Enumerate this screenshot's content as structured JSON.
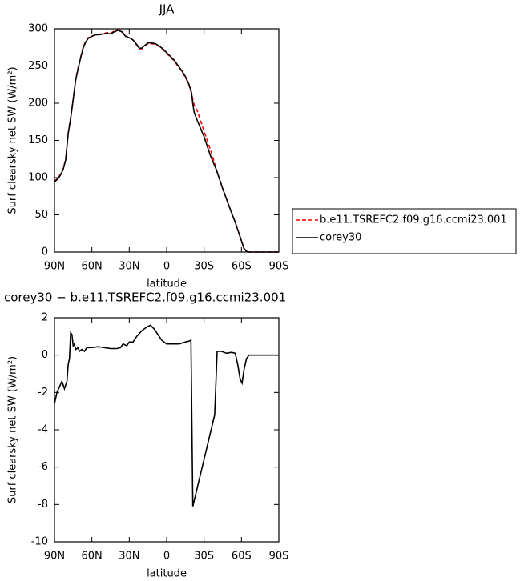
{
  "chart_data": [
    {
      "type": "line",
      "title": "JJA",
      "xlabel": "latitude",
      "ylabel": "Surf clearsky net SW (W/m²)",
      "x": [
        90,
        87,
        85,
        83,
        81,
        79,
        77,
        75,
        73,
        71,
        69,
        67,
        65,
        63,
        60,
        57,
        54,
        51,
        48,
        45,
        42,
        39,
        36,
        33,
        30,
        27,
        24,
        22,
        20,
        18,
        15,
        12,
        9,
        6,
        3,
        0,
        -3,
        -6,
        -9,
        -12,
        -15,
        -18,
        -20,
        -21,
        -22,
        -25,
        -30,
        -35,
        -38,
        -40,
        -45,
        -50,
        -55,
        -58,
        -60,
        -62,
        -64,
        -66,
        -90
      ],
      "series": [
        {
          "name": "b.e11.TSREFC2.f09.g16.ccmi23.001",
          "color": "#ff0000",
          "dashed": true,
          "values": [
            95,
            100,
            105,
            112,
            125,
            160,
            180,
            205,
            232,
            248,
            262,
            275,
            283,
            288,
            290,
            292,
            293,
            293,
            295,
            294,
            297,
            299,
            297,
            290,
            288,
            285,
            278,
            273,
            273,
            276,
            280,
            280,
            279,
            276,
            272,
            267,
            262,
            257,
            250,
            243,
            235,
            224,
            213,
            205,
            198,
            188,
            162,
            138,
            122,
            110,
            85,
            62,
            40,
            25,
            15,
            5,
            1,
            0,
            0
          ]
        },
        {
          "name": "corey30",
          "color": "#000000",
          "dashed": false,
          "values": [
            94,
            99,
            104,
            111,
            124,
            159,
            180,
            205,
            231,
            247,
            261,
            274,
            282,
            287,
            290,
            292,
            292,
            293,
            294,
            293,
            296,
            298,
            296,
            290,
            288,
            285,
            279,
            274,
            274,
            277,
            281,
            281,
            280,
            277,
            273,
            268,
            263,
            258,
            251,
            244,
            236,
            225,
            214,
            199,
            188,
            175,
            155,
            130,
            118,
            110,
            85,
            62,
            40,
            25,
            15,
            5,
            1,
            0,
            0
          ]
        }
      ],
      "xlim": [
        90,
        -90
      ],
      "xticks": [
        {
          "value": 90,
          "label": "90N"
        },
        {
          "value": 60,
          "label": "60N"
        },
        {
          "value": 30,
          "label": "30N"
        },
        0,
        {
          "value": -30,
          "label": "30S"
        },
        {
          "value": -60,
          "label": "60S"
        },
        {
          "value": -90,
          "label": "90S"
        }
      ],
      "ylim": [
        0,
        300
      ],
      "yticks": [
        0,
        50,
        100,
        150,
        200,
        250,
        300
      ],
      "legend": "right"
    },
    {
      "type": "line",
      "title": "corey30 − b.e11.TSREFC2.f09.g16.ccmi23.001",
      "xlabel": "latitude",
      "ylabel": "Surf clearsky net SW (W/m²)",
      "x": [
        90,
        88,
        86,
        84,
        82,
        80,
        79,
        78,
        77,
        76,
        75,
        74,
        73,
        71,
        70,
        68,
        66,
        64,
        60,
        55,
        50,
        45,
        40,
        37,
        35,
        32,
        30,
        27,
        24,
        20,
        16,
        13,
        10,
        7,
        4,
        0,
        -5,
        -10,
        -15,
        -18,
        -19.5,
        -21,
        -38.5,
        -40.5,
        -44,
        -48,
        -52,
        -55,
        -57,
        -59,
        -60.5,
        -62,
        -64,
        -66,
        -90
      ],
      "series": [
        {
          "color": "#000000",
          "dashed": false,
          "values": [
            -2.6,
            -2.0,
            -1.7,
            -1.4,
            -1.8,
            -1.4,
            -0.5,
            -0.2,
            1.2,
            1.1,
            0.5,
            0.6,
            0.3,
            0.4,
            0.2,
            0.3,
            0.2,
            0.4,
            0.4,
            0.45,
            0.4,
            0.35,
            0.35,
            0.4,
            0.6,
            0.5,
            0.7,
            0.7,
            1.0,
            1.3,
            1.5,
            1.6,
            1.4,
            1.1,
            0.8,
            0.6,
            0.6,
            0.6,
            0.7,
            0.75,
            0.8,
            -8.1,
            -3.2,
            0.2,
            0.2,
            0.1,
            0.15,
            0.1,
            -0.5,
            -1.3,
            -1.5,
            -0.8,
            -0.2,
            0,
            0
          ]
        }
      ],
      "xlim": [
        90,
        -90
      ],
      "xticks": [
        {
          "value": 90,
          "label": "90N"
        },
        {
          "value": 60,
          "label": "60N"
        },
        {
          "value": 30,
          "label": "30N"
        },
        0,
        {
          "value": -30,
          "label": "30S"
        },
        {
          "value": -60,
          "label": "60S"
        },
        {
          "value": -90,
          "label": "90S"
        }
      ],
      "ylim": [
        -10,
        2
      ],
      "yticks": [
        -10,
        -8,
        -6,
        -4,
        -2,
        0,
        2
      ]
    }
  ]
}
